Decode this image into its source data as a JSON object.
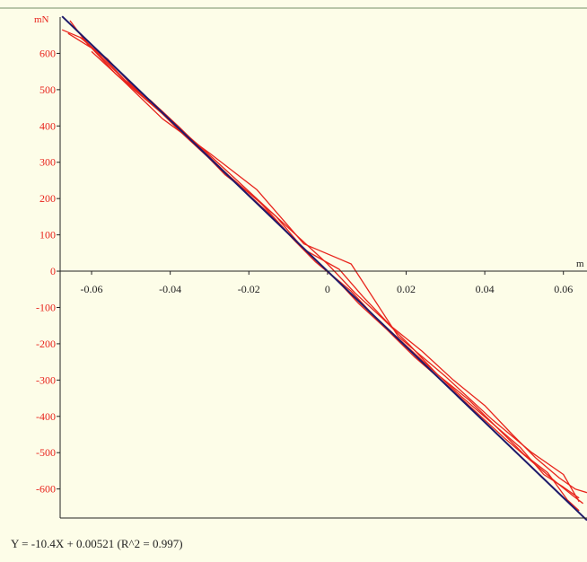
{
  "chart_data": {
    "type": "line",
    "xlabel": "m",
    "ylabel": "mN",
    "xlim": [
      -0.068,
      0.066
    ],
    "ylim": [
      -680,
      700
    ],
    "x_ticks": [
      -0.06,
      -0.04,
      -0.02,
      0,
      0.02,
      0.04,
      0.06
    ],
    "x_tick_labels": [
      "-0.06",
      "-0.04",
      "-0.02",
      "0",
      "0.02",
      "0.04",
      "0.06"
    ],
    "y_ticks": [
      600,
      500,
      400,
      300,
      200,
      100,
      0,
      -100,
      -200,
      -300,
      -400,
      -500,
      -600
    ],
    "y_tick_labels": [
      "600",
      "500",
      "400",
      "300",
      "200",
      "100",
      "0",
      "-100",
      "-200",
      "-300",
      "-400",
      "-500",
      "-600"
    ],
    "grid": false,
    "series": [
      {
        "color": "#e8241c",
        "x": [
          -0.0675,
          -0.062,
          -0.058,
          -0.052,
          -0.045,
          -0.038,
          -0.03,
          -0.022,
          -0.015,
          -0.008,
          -0.003,
          0.002,
          0.008,
          0.015,
          0.022,
          0.03,
          0.038,
          0.045,
          0.052,
          0.058,
          0.062,
          0.065
        ],
        "y": [
          665,
          640,
          595,
          530,
          470,
          400,
          315,
          230,
          160,
          80,
          25,
          -20,
          -90,
          -160,
          -235,
          -310,
          -390,
          -460,
          -525,
          -580,
          -615,
          -640
        ]
      },
      {
        "color": "#e8241c",
        "x": [
          -0.0655,
          -0.061,
          -0.056,
          -0.05,
          -0.042,
          -0.034,
          -0.026,
          -0.018,
          -0.01,
          -0.004,
          0.001,
          0.006,
          0.012,
          0.019,
          0.026,
          0.034,
          0.042,
          0.049,
          0.055,
          0.06,
          0.064
        ],
        "y": [
          690,
          625,
          585,
          515,
          440,
          355,
          265,
          200,
          105,
          40,
          -10,
          -55,
          -125,
          -195,
          -265,
          -345,
          -420,
          -485,
          -560,
          -595,
          -625
        ]
      },
      {
        "color": "#e8241c",
        "x": [
          -0.066,
          -0.06,
          -0.054,
          -0.047,
          -0.04,
          -0.032,
          -0.024,
          -0.016,
          -0.008,
          0.0,
          0.007,
          0.014,
          0.021,
          0.028,
          0.036,
          0.044,
          0.05,
          0.056,
          0.061,
          0.064
        ],
        "y": [
          655,
          615,
          545,
          480,
          415,
          340,
          260,
          180,
          100,
          20,
          -60,
          -130,
          -205,
          -285,
          -355,
          -440,
          -505,
          -555,
          -630,
          -660
        ]
      },
      {
        "color": "#e8241c",
        "x": [
          -0.063,
          -0.057,
          -0.051,
          -0.044,
          -0.037,
          -0.029,
          -0.021,
          -0.013,
          -0.006,
          0.003,
          0.009,
          0.016,
          0.024,
          0.032,
          0.04,
          0.047,
          0.053,
          0.059,
          0.063,
          0.066
        ],
        "y": [
          645,
          590,
          520,
          455,
          380,
          300,
          225,
          150,
          60,
          5,
          -70,
          -150,
          -220,
          -300,
          -370,
          -450,
          -515,
          -570,
          -600,
          -610
        ]
      },
      {
        "color": "#e8241c",
        "x": [
          -0.06,
          -0.052,
          -0.042,
          -0.03,
          -0.018,
          -0.006,
          0.006,
          0.018,
          0.03,
          0.042,
          0.052,
          0.06,
          0.064
        ],
        "y": [
          605,
          525,
          420,
          325,
          225,
          75,
          20,
          -180,
          -290,
          -410,
          -500,
          -560,
          -635
        ]
      }
    ],
    "fit_line": {
      "color": "#1e1b6b",
      "x": [
        -0.0675,
        0.066
      ],
      "slope": -10400,
      "intercept": 0.00521
    },
    "annotation": "Y = -10.4X + 0.00521 (R^2 = 0.997)"
  }
}
